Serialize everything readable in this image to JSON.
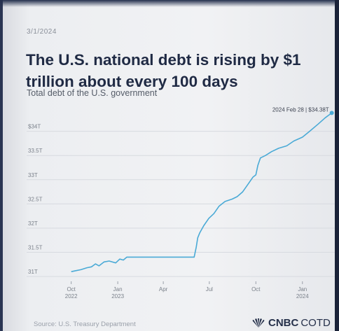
{
  "header": {
    "date": "3/1/2024",
    "title": "The U.S. national debt is rising by $1 trillion about every 100 days",
    "subtitle": "Total debt of the U.S. government"
  },
  "footer": {
    "source": "Source: U.S. Treasury Department",
    "brand_bold": "CNBC",
    "brand_light": "COTD",
    "brand_icon": "peacock-icon"
  },
  "colors": {
    "line": "#4aaad6",
    "title": "#1f2a44",
    "grid": "#d7dae0",
    "tick": "#7a808a"
  },
  "chart_data": {
    "type": "line",
    "title": "The U.S. national debt is rising by $1 trillion about every 100 days",
    "ylabel": "",
    "xlabel": "",
    "grid": true,
    "ylim": [
      30.9,
      34.4
    ],
    "xlim": [
      "2022-09-01",
      "2024-03-05"
    ],
    "y_ticks": [
      {
        "value": 31,
        "label": "31T"
      },
      {
        "value": 31.5,
        "label": "31.5T"
      },
      {
        "value": 32,
        "label": "32T"
      },
      {
        "value": 32.5,
        "label": "32.5T"
      },
      {
        "value": 33,
        "label": "33T"
      },
      {
        "value": 33.5,
        "label": "33.5T"
      },
      {
        "value": 34,
        "label": "$34T"
      }
    ],
    "x_ticks": [
      {
        "date": "2022-10-01",
        "label": "Oct",
        "sub": "2022"
      },
      {
        "date": "2023-01-01",
        "label": "Jan",
        "sub": "2023"
      },
      {
        "date": "2023-04-01",
        "label": "Apr",
        "sub": ""
      },
      {
        "date": "2023-07-01",
        "label": "Jul",
        "sub": ""
      },
      {
        "date": "2023-10-01",
        "label": "Oct",
        "sub": ""
      },
      {
        "date": "2024-01-01",
        "label": "Jan",
        "sub": "2024"
      }
    ],
    "annotation": {
      "date": "2024-02-28",
      "value": 34.38,
      "label": "2024 Feb 28 | $34.38T"
    },
    "series": [
      {
        "values": [
          [
            "2022-10-01",
            31.1
          ],
          [
            "2022-10-10",
            31.12
          ],
          [
            "2022-10-20",
            31.14
          ],
          [
            "2022-11-01",
            31.18
          ],
          [
            "2022-11-10",
            31.2
          ],
          [
            "2022-11-18",
            31.26
          ],
          [
            "2022-11-25",
            31.22
          ],
          [
            "2022-12-05",
            31.3
          ],
          [
            "2022-12-15",
            31.32
          ],
          [
            "2022-12-28",
            31.28
          ],
          [
            "2023-01-05",
            31.36
          ],
          [
            "2023-01-12",
            31.34
          ],
          [
            "2023-01-19",
            31.4
          ],
          [
            "2023-02-15",
            31.4
          ],
          [
            "2023-03-15",
            31.4
          ],
          [
            "2023-04-15",
            31.4
          ],
          [
            "2023-05-15",
            31.4
          ],
          [
            "2023-06-01",
            31.4
          ],
          [
            "2023-06-05",
            31.6
          ],
          [
            "2023-06-08",
            31.8
          ],
          [
            "2023-06-12",
            31.9
          ],
          [
            "2023-06-20",
            32.05
          ],
          [
            "2023-06-30",
            32.2
          ],
          [
            "2023-07-10",
            32.3
          ],
          [
            "2023-07-20",
            32.45
          ],
          [
            "2023-08-01",
            32.55
          ],
          [
            "2023-08-15",
            32.6
          ],
          [
            "2023-08-25",
            32.65
          ],
          [
            "2023-09-05",
            32.75
          ],
          [
            "2023-09-15",
            32.9
          ],
          [
            "2023-09-25",
            33.05
          ],
          [
            "2023-10-01",
            33.1
          ],
          [
            "2023-10-05",
            33.3
          ],
          [
            "2023-10-10",
            33.45
          ],
          [
            "2023-10-20",
            33.5
          ],
          [
            "2023-11-01",
            33.58
          ],
          [
            "2023-11-15",
            33.65
          ],
          [
            "2023-12-01",
            33.7
          ],
          [
            "2023-12-15",
            33.8
          ],
          [
            "2024-01-01",
            33.88
          ],
          [
            "2024-01-15",
            34.0
          ],
          [
            "2024-02-01",
            34.15
          ],
          [
            "2024-02-15",
            34.28
          ],
          [
            "2024-02-28",
            34.38
          ]
        ]
      }
    ]
  }
}
